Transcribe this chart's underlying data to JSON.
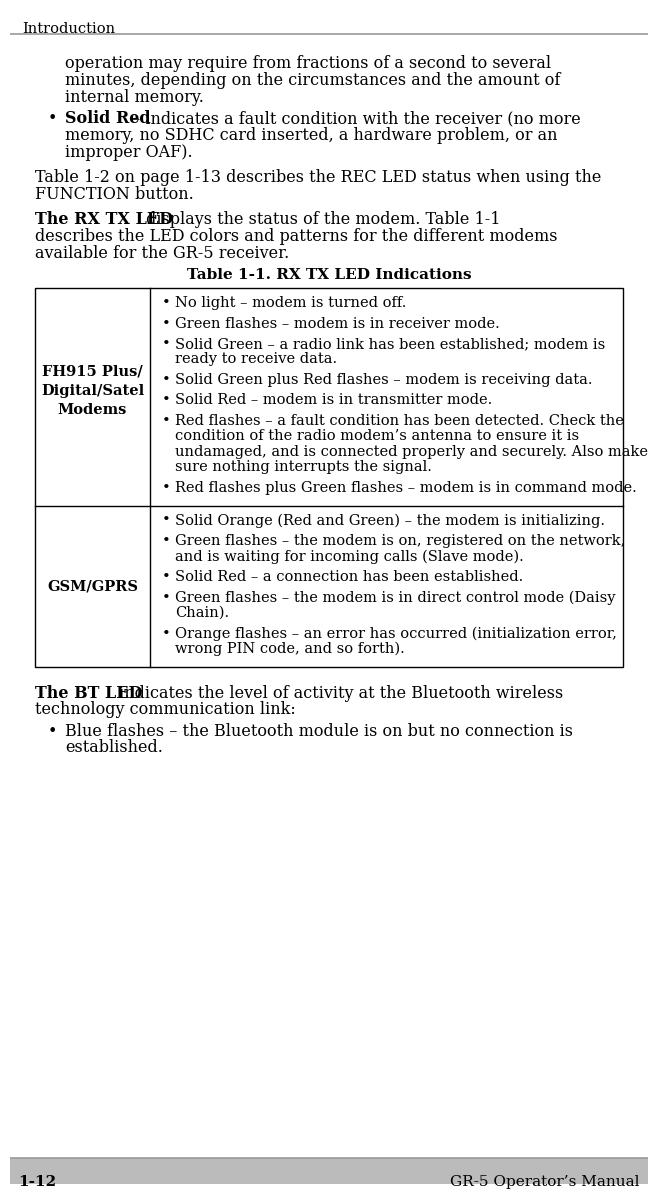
{
  "page_bg": "#ffffff",
  "header_text": "Introduction",
  "header_line_color": "#999999",
  "footer_line_color": "#999999",
  "footer_left": "1-12",
  "footer_right": "GR-5 Operator’s Manual",
  "footer_bg": "#bbbbbb",
  "body_text_intro": "operation may require from fractions of a second to several\nminutes, depending on the circumstances and the amount of\ninternal memory.",
  "bullet1_text1": "Solid Red",
  "bullet1_text2": " – indicates a fault condition with the receiver (no more\nmemory, no SDHC card inserted, a hardware problem, or an\nimproper OAF).",
  "para_table_ref_line1": "Table 1-2 on page 1-13 describes the REC LED status when using the",
  "para_table_ref_line2": "FUNCTION button.",
  "para_rxtx_bold": "The RX TX LED",
  "para_rxtx_line1_rest": " displays the status of the modem. Table 1-1",
  "para_rxtx_line2": "describes the LED colors and patterns for the different modems",
  "para_rxtx_line3": "available for the GR-5 receiver.",
  "table_title": "Table 1-1. RX TX LED Indications",
  "table_col1_row1": "FH915 Plus/\nDigital/Satel\nModems",
  "table_col2_row1": [
    "No light – modem is turned off.",
    "Green flashes – modem is in receiver mode.",
    "Solid Green – a radio link has been established; modem is\nready to receive data.",
    "Solid Green plus Red flashes – modem is receiving data.",
    "Solid Red – modem is in transmitter mode.",
    "Red flashes – a fault condition has been detected. Check the\ncondition of the radio modem’s antenna to ensure it is\nundamaged, and is connected properly and securely. Also make\nsure nothing interrupts the signal.",
    "Red flashes plus Green flashes – modem is in command mode."
  ],
  "table_col1_row2": "GSM/GPRS",
  "table_col2_row2": [
    "Solid Orange (Red and Green) – the modem is initializing.",
    "Green flashes – the modem is on, registered on the network,\nand is waiting for incoming calls (Slave mode).",
    "Solid Red – a connection has been established.",
    "Green flashes – the modem is in direct control mode (Daisy\nChain).",
    "Orange flashes – an error has occurred (initialization error,\nwrong PIN code, and so forth)."
  ],
  "para_bt_bold": "The BT LED",
  "para_bt_line1_rest": " indicates the level of activity at the Bluetooth wireless",
  "para_bt_line2": "technology communication link:",
  "bullet_bt_line1": "Blue flashes – the Bluetooth module is on but no connection is",
  "bullet_bt_line2": "established.",
  "font_family": "serif",
  "font_size_header": 10.5,
  "font_size_body": 11.5,
  "font_size_table": 10.5,
  "font_size_table_title": 11.0,
  "font_size_footer": 11.0,
  "text_color": "#000000",
  "table_border_color": "#000000"
}
